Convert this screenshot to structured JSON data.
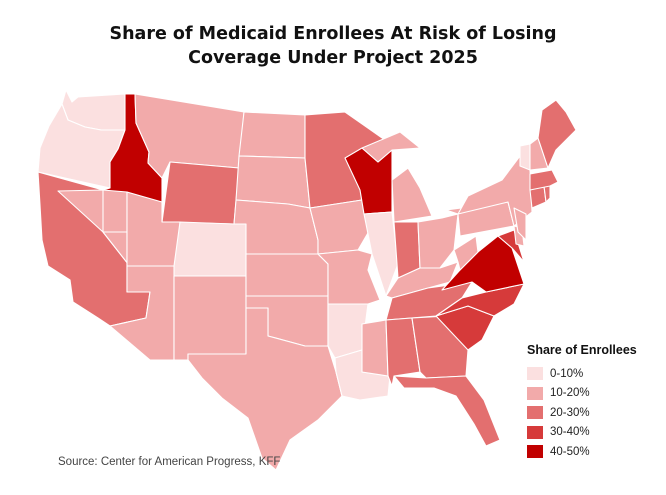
{
  "title": {
    "line1": "Share of Medicaid Enrollees At Risk of Losing",
    "line2": "Coverage Under Project 2025"
  },
  "legend": {
    "title": "Share of Enrollees",
    "items": [
      {
        "label": "0-10%",
        "color": "#fbe0e0"
      },
      {
        "label": "10-20%",
        "color": "#f2aaaa"
      },
      {
        "label": "20-30%",
        "color": "#e36f6f"
      },
      {
        "label": "30-40%",
        "color": "#d63a3a"
      },
      {
        "label": "40-50%",
        "color": "#c10000"
      }
    ]
  },
  "source": "Source: Center for American Progress, KFF",
  "map_data": {
    "type": "choropleth",
    "region": "United States (contiguous)",
    "bins": [
      "0-10%",
      "10-20%",
      "20-30%",
      "30-40%",
      "40-50%"
    ],
    "states": {
      "WA": "0-10%",
      "OR": "0-10%",
      "ID": "40-50%",
      "MT": "10-20%",
      "WY": "20-30%",
      "CA": "20-30%",
      "NV": "10-20%",
      "UT": "10-20%",
      "CO": "0-10%",
      "AZ": "10-20%",
      "NM": "10-20%",
      "ND": "10-20%",
      "SD": "10-20%",
      "NE": "10-20%",
      "KS": "10-20%",
      "OK": "10-20%",
      "TX": "10-20%",
      "MN": "20-30%",
      "IA": "10-20%",
      "MO": "10-20%",
      "AR": "0-10%",
      "LA": "0-10%",
      "WI": "40-50%",
      "IL": "0-10%",
      "MI": "10-20%",
      "IN": "20-30%",
      "OH": "10-20%",
      "KY": "10-20%",
      "TN": "20-30%",
      "MS": "10-20%",
      "AL": "20-30%",
      "GA": "20-30%",
      "FL": "20-30%",
      "SC": "30-40%",
      "NC": "30-40%",
      "VA": "40-50%",
      "WV": "10-20%",
      "PA": "10-20%",
      "NY": "10-20%",
      "MD": "30-40%",
      "DE": "10-20%",
      "NJ": "10-20%",
      "CT": "20-30%",
      "RI": "20-30%",
      "MA": "20-30%",
      "VT": "0-10%",
      "NH": "10-20%",
      "ME": "20-30%"
    }
  }
}
